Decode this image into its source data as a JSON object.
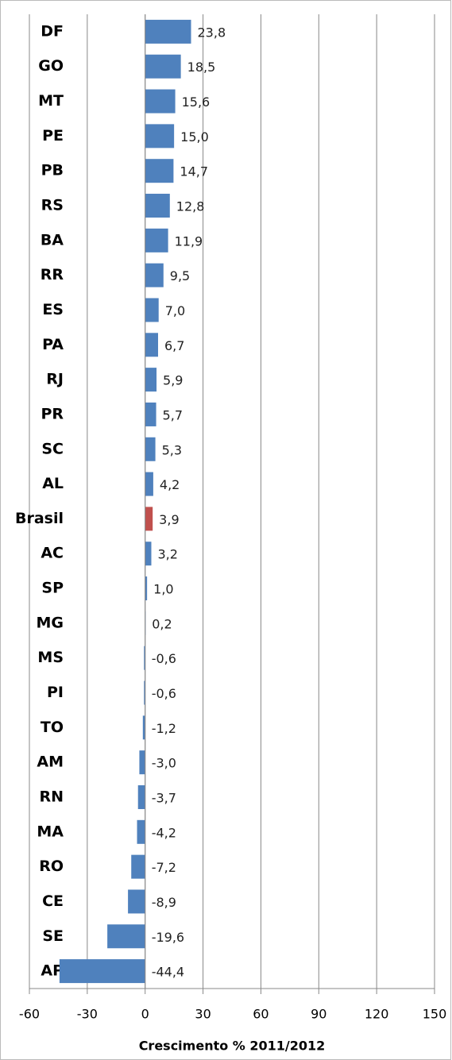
{
  "chart_data": {
    "type": "bar",
    "orientation": "horizontal",
    "x_label": "Crescimento % 2011/2012",
    "categories": [
      "DF",
      "GO",
      "MT",
      "PE",
      "PB",
      "RS",
      "BA",
      "RR",
      "ES",
      "PA",
      "RJ",
      "PR",
      "SC",
      "AL",
      "Brasil",
      "AC",
      "SP",
      "MG",
      "MS",
      "PI",
      "TO",
      "AM",
      "RN",
      "MA",
      "RO",
      "CE",
      "SE",
      "AP"
    ],
    "values": [
      23.8,
      18.5,
      15.6,
      15.0,
      14.7,
      12.8,
      11.9,
      9.5,
      7.0,
      6.7,
      5.9,
      5.7,
      5.3,
      4.2,
      3.9,
      3.2,
      1.0,
      0.2,
      -0.6,
      -0.6,
      -1.2,
      -3.0,
      -3.7,
      -4.2,
      -7.2,
      -8.9,
      -19.6,
      -44.4
    ],
    "value_labels": [
      "23,8",
      "18,5",
      "15,6",
      "15,0",
      "14,7",
      "12,8",
      "11,9",
      "9,5",
      "7,0",
      "6,7",
      "5,9",
      "5,7",
      "5,3",
      "4,2",
      "3,9",
      "3,2",
      "1,0",
      "0,2",
      "-0,6",
      "-0,6",
      "-1,2",
      "-3,0",
      "-3,7",
      "-4,2",
      "-7,2",
      "-8,9",
      "-19,6",
      "-44,4"
    ],
    "colors": [
      "#4f81bd",
      "#4f81bd",
      "#4f81bd",
      "#4f81bd",
      "#4f81bd",
      "#4f81bd",
      "#4f81bd",
      "#4f81bd",
      "#4f81bd",
      "#4f81bd",
      "#4f81bd",
      "#4f81bd",
      "#4f81bd",
      "#4f81bd",
      "#c0504d",
      "#4f81bd",
      "#4f81bd",
      "#4f81bd",
      "#4f81bd",
      "#4f81bd",
      "#4f81bd",
      "#4f81bd",
      "#4f81bd",
      "#4f81bd",
      "#4f81bd",
      "#4f81bd",
      "#4f81bd",
      "#4f81bd"
    ],
    "xlim": [
      -60,
      150
    ],
    "xticks": [
      -60,
      -30,
      0,
      30,
      60,
      90,
      120,
      150
    ],
    "grid": true
  }
}
